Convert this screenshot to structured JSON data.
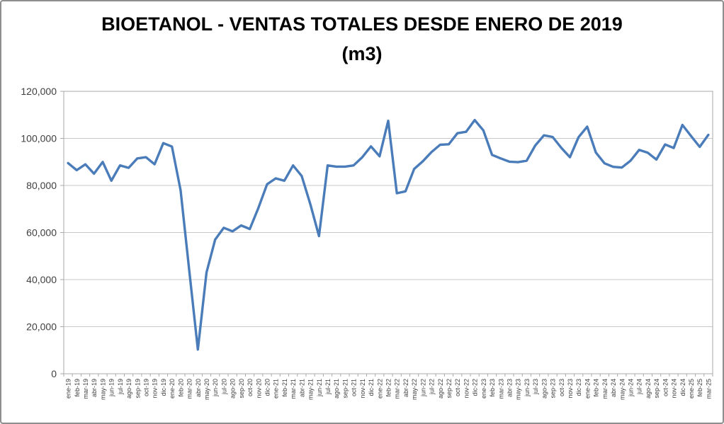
{
  "frame": {
    "background": "#FFFFFF",
    "border_color": "#8E8E8E"
  },
  "chart_data": {
    "type": "line",
    "title_line1": "BIOETANOL - VENTAS TOTALES DESDE ENERO DE 2019",
    "title_line2": "(m3)",
    "xlabel": "",
    "ylabel": "",
    "ylim": [
      0,
      120000
    ],
    "yticks": [
      0,
      20000,
      40000,
      60000,
      80000,
      100000,
      120000
    ],
    "ytick_labels": [
      "0",
      "20,000",
      "40,000",
      "60,000",
      "80,000",
      "100,000",
      "120,000"
    ],
    "grid": true,
    "legend": "none",
    "line_color": "#4A7CBA",
    "grid_color": "#C9C9C9",
    "axis_color": "#A9A9A9",
    "tick_label_color": "#3F3F3F",
    "categories": [
      "ene-19",
      "feb-19",
      "mar-19",
      "abr-19",
      "may-19",
      "jun-19",
      "jul-19",
      "ago-19",
      "sep-19",
      "oct-19",
      "nov-19",
      "dic-19",
      "ene-20",
      "feb-20",
      "mar-20",
      "abr-20",
      "may-20",
      "jun-20",
      "jul-20",
      "ago-20",
      "sep-20",
      "oct-20",
      "nov-20",
      "dic-20",
      "ene-21",
      "feb-21",
      "mar-21",
      "abr-21",
      "may-21",
      "jun-21",
      "jul-21",
      "ago-21",
      "sep-21",
      "oct-21",
      "nov-21",
      "dic-21",
      "ene-22",
      "feb-22",
      "mar-22",
      "abr-22",
      "may-22",
      "jun-22",
      "jul-22",
      "ago-22",
      "sep-22",
      "oct-22",
      "nov-22",
      "dic-22",
      "ene-23",
      "feb-23",
      "mar-23",
      "abr-23",
      "may-23",
      "jun-23",
      "jul-23",
      "ago-23",
      "sep-23",
      "oct-23",
      "nov-23",
      "dic-23",
      "ene-24",
      "feb-24",
      "mar-24",
      "abr-24",
      "may-24",
      "jun-24",
      "jul-24",
      "ago-24",
      "sep-24",
      "oct-24",
      "nov-24",
      "dic-24",
      "ene-25",
      "feb-25",
      "mar-25"
    ],
    "series": [
      {
        "name": "Ventas totales de bioetanol (m3)",
        "color": "#4A7CBA",
        "values": [
          89500,
          86500,
          89000,
          85000,
          90000,
          82000,
          88500,
          87500,
          91500,
          92000,
          89000,
          98000,
          96500,
          78000,
          44000,
          10300,
          43000,
          57000,
          62000,
          60500,
          63000,
          61500,
          70500,
          80500,
          83000,
          82000,
          88500,
          84000,
          72000,
          58500,
          88500,
          88000,
          88000,
          88500,
          92000,
          96600,
          92400,
          107500,
          76700,
          77500,
          87000,
          90300,
          94200,
          97300,
          97500,
          102200,
          102800,
          107800,
          103400,
          93000,
          91500,
          90100,
          89900,
          90500,
          97000,
          101300,
          100600,
          96000,
          92000,
          100500,
          105000,
          94000,
          89400,
          87900,
          87600,
          90500,
          95100,
          93900,
          91000,
          97400,
          95900,
          105700,
          101000,
          96400,
          101500
        ]
      }
    ]
  }
}
